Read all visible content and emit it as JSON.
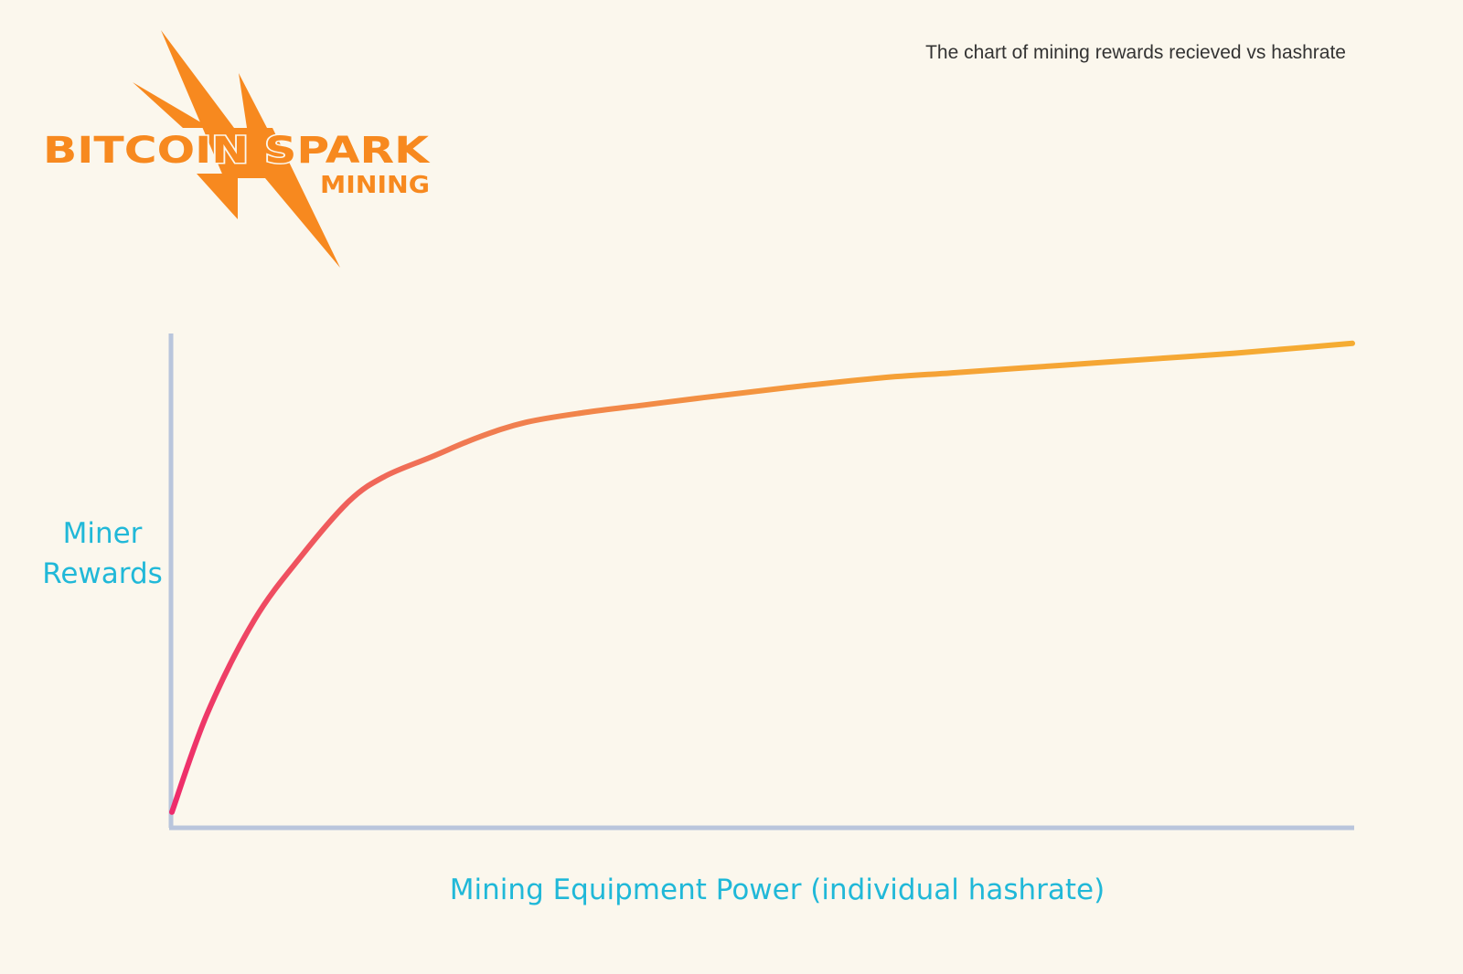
{
  "logo": {
    "line1": "BITCOIN SPARK",
    "line2": "MINING",
    "color": "#f7891f",
    "icon": "lightning-bolt-icon"
  },
  "chart_data": {
    "type": "line",
    "title": "The chart of mining rewards recieved vs hashrate",
    "xlabel": "Mining Equipment Power (individual hashrate)",
    "ylabel": "Miner Rewards",
    "xlim": [
      0,
      100
    ],
    "ylim": [
      0,
      100
    ],
    "grid": false,
    "legend": "none",
    "series": [
      {
        "x": [
          0,
          3,
          7,
          11,
          15,
          18,
          22,
          26,
          30,
          35,
          40,
          45,
          52,
          60,
          66,
          72,
          78,
          84,
          90,
          95,
          100
        ],
        "y": [
          3,
          23,
          42,
          55,
          66,
          71,
          75,
          79,
          82,
          84,
          85.5,
          87,
          89,
          91,
          92,
          93,
          94,
          95,
          96,
          97,
          98
        ]
      }
    ],
    "line_gradient": [
      "#ee2a6c",
      "#f07b52",
      "#f5a236",
      "#f5ac32"
    ],
    "label_color": "#20b8d8",
    "axis_color": "#b9c5dc"
  }
}
